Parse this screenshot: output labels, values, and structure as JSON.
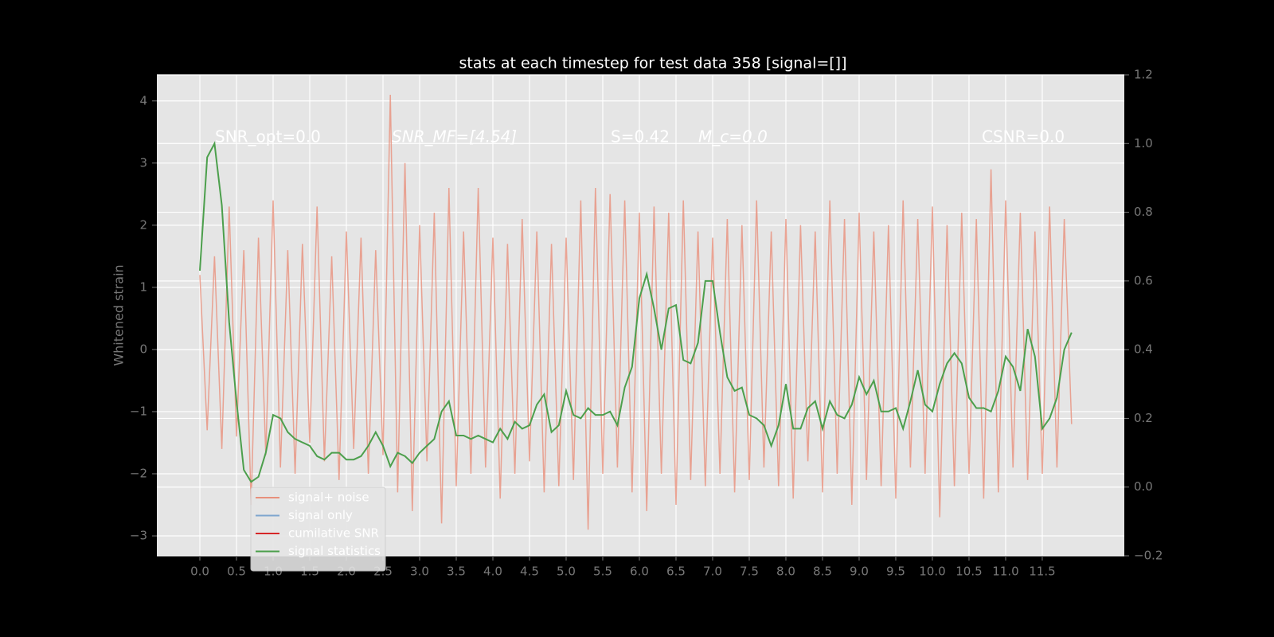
{
  "chart_data": {
    "type": "line",
    "title": "stats at each timestep for test data 358 [signal=[]]",
    "ylabel": "Whitened strain",
    "annotations": [
      "SNR_opt=0.0",
      "SNR_MF=[4.54]",
      "S=0.42",
      "M_c=0.0",
      "CSNR=0.0"
    ],
    "x": [
      0,
      0.1,
      0.2,
      0.3,
      0.4,
      0.5,
      0.6,
      0.7,
      0.8,
      0.9,
      1.0,
      1.1,
      1.2,
      1.3,
      1.4,
      1.5,
      1.6,
      1.7,
      1.8,
      1.9,
      2.0,
      2.1,
      2.2,
      2.3,
      2.4,
      2.5,
      2.6,
      2.7,
      2.8,
      2.9,
      3.0,
      3.1,
      3.2,
      3.3,
      3.4,
      3.5,
      3.6,
      3.7,
      3.8,
      3.9,
      4.0,
      4.1,
      4.2,
      4.3,
      4.4,
      4.5,
      4.6,
      4.7,
      4.8,
      4.9,
      5.0,
      5.1,
      5.2,
      5.3,
      5.4,
      5.5,
      5.6,
      5.7,
      5.8,
      5.9,
      6.0,
      6.1,
      6.2,
      6.3,
      6.4,
      6.5,
      6.6,
      6.7,
      6.8,
      6.9,
      7.0,
      7.1,
      7.2,
      7.3,
      7.4,
      7.5,
      7.6,
      7.7,
      7.8,
      7.9,
      8.0,
      8.1,
      8.2,
      8.3,
      8.4,
      8.5,
      8.6,
      8.7,
      8.8,
      8.9,
      9.0,
      9.1,
      9.2,
      9.3,
      9.4,
      9.5,
      9.6,
      9.7,
      9.8,
      9.9,
      10.0,
      10.1,
      10.2,
      10.3,
      10.4,
      10.5,
      10.6,
      10.7,
      10.8,
      10.9,
      11.0,
      11.1,
      11.2,
      11.3,
      11.4,
      11.5,
      11.6,
      11.7,
      11.8,
      11.9
    ],
    "series": [
      {
        "name": "signal+ noise",
        "color": "#e8907c",
        "values": [
          1.2,
          -1.3,
          1.5,
          -1.6,
          2.3,
          -1.4,
          1.6,
          -2.5,
          1.8,
          -1.7,
          2.4,
          -1.9,
          1.6,
          -2.0,
          1.7,
          -1.5,
          2.3,
          -1.8,
          1.5,
          -2.1,
          1.9,
          -1.6,
          1.8,
          -2.0,
          1.6,
          -1.7,
          4.1,
          -2.3,
          3.0,
          -2.6,
          2.0,
          -1.8,
          2.2,
          -2.8,
          2.6,
          -2.2,
          1.9,
          -2.0,
          2.6,
          -1.9,
          1.8,
          -2.4,
          1.7,
          -2.0,
          2.1,
          -1.8,
          1.9,
          -2.3,
          1.7,
          -2.2,
          1.8,
          -2.1,
          2.4,
          -2.9,
          2.6,
          -2.0,
          2.5,
          -1.9,
          2.4,
          -2.3,
          2.2,
          -2.6,
          2.3,
          -2.0,
          2.2,
          -2.5,
          2.4,
          -2.1,
          1.9,
          -2.2,
          1.8,
          -2.0,
          2.1,
          -2.3,
          2.0,
          -2.1,
          2.4,
          -1.9,
          1.9,
          -2.2,
          2.1,
          -2.4,
          2.0,
          -1.8,
          1.9,
          -2.3,
          2.4,
          -2.0,
          2.1,
          -2.5,
          2.2,
          -2.1,
          1.9,
          -2.2,
          2.0,
          -2.4,
          2.4,
          -1.9,
          2.1,
          -2.0,
          2.3,
          -2.7,
          2.0,
          -2.2,
          2.2,
          -2.0,
          2.1,
          -2.4,
          2.9,
          -2.3,
          2.4,
          -1.9,
          2.2,
          -2.1,
          1.9,
          -2.0,
          2.3,
          -1.9,
          2.1,
          -1.2
        ]
      },
      {
        "name": "signal only",
        "color": "#7ea6cf"
      },
      {
        "name": "cumilative SNR",
        "color": "#d62728"
      },
      {
        "name": "signal statistics",
        "color": "#4c9f4c",
        "axis": "y2",
        "values": [
          0.63,
          0.96,
          1.0,
          0.82,
          0.48,
          0.25,
          0.05,
          0.015,
          0.03,
          0.1,
          0.21,
          0.2,
          0.16,
          0.14,
          0.13,
          0.12,
          0.09,
          0.08,
          0.1,
          0.1,
          0.08,
          0.08,
          0.09,
          0.12,
          0.16,
          0.12,
          0.06,
          0.1,
          0.09,
          0.07,
          0.1,
          0.12,
          0.14,
          0.22,
          0.25,
          0.15,
          0.15,
          0.14,
          0.15,
          0.14,
          0.13,
          0.17,
          0.14,
          0.19,
          0.17,
          0.18,
          0.24,
          0.27,
          0.16,
          0.18,
          0.28,
          0.21,
          0.2,
          0.23,
          0.21,
          0.21,
          0.22,
          0.18,
          0.29,
          0.35,
          0.55,
          0.62,
          0.52,
          0.4,
          0.52,
          0.53,
          0.37,
          0.36,
          0.42,
          0.6,
          0.6,
          0.45,
          0.32,
          0.28,
          0.29,
          0.21,
          0.2,
          0.18,
          0.12,
          0.18,
          0.3,
          0.17,
          0.17,
          0.23,
          0.25,
          0.17,
          0.25,
          0.21,
          0.2,
          0.24,
          0.32,
          0.27,
          0.31,
          0.22,
          0.22,
          0.23,
          0.17,
          0.25,
          0.34,
          0.24,
          0.22,
          0.3,
          0.36,
          0.39,
          0.36,
          0.26,
          0.23,
          0.23,
          0.22,
          0.28,
          0.38,
          0.35,
          0.28,
          0.46,
          0.38,
          0.17,
          0.2,
          0.26,
          0.4,
          0.45
        ]
      }
    ],
    "xlim": [
      -0.587,
      12.62
    ],
    "ylim": [
      -3.32,
      4.42
    ],
    "y2lim": [
      -0.2,
      1.2
    ],
    "xticks": [
      {
        "value": 0,
        "label": "0.0"
      },
      0.5,
      {
        "value": 1,
        "label": "1.0"
      },
      1.5,
      {
        "value": 2,
        "label": "2.0"
      },
      2.5,
      {
        "value": 3,
        "label": "3.0"
      },
      3.5,
      {
        "value": 4,
        "label": "4.0"
      },
      4.5,
      {
        "value": 5,
        "label": "5.0"
      },
      5.5,
      {
        "value": 6,
        "label": "6.0"
      },
      6.5,
      {
        "value": 7,
        "label": "7.0"
      },
      7.5,
      {
        "value": 8,
        "label": "8.0"
      },
      8.5,
      {
        "value": 9,
        "label": "9.0"
      },
      9.5,
      {
        "value": 10,
        "label": "10.0"
      },
      10.5,
      {
        "value": 11,
        "label": "11.0"
      },
      11.5
    ],
    "yticks": [
      {
        "value": -3,
        "label": "−3"
      },
      {
        "value": -2,
        "label": "−2"
      },
      {
        "value": -1,
        "label": "−1"
      },
      0,
      1,
      2,
      3,
      4
    ],
    "y2ticks": [
      {
        "value": -0.2,
        "label": "−0.2"
      },
      {
        "value": 0,
        "label": "0.0"
      },
      0.2,
      0.4,
      0.6,
      0.8,
      {
        "value": 1,
        "label": "1.0"
      },
      {
        "value": 1.2,
        "label": "1.2"
      }
    ],
    "grid": true,
    "legend": "lower left"
  }
}
